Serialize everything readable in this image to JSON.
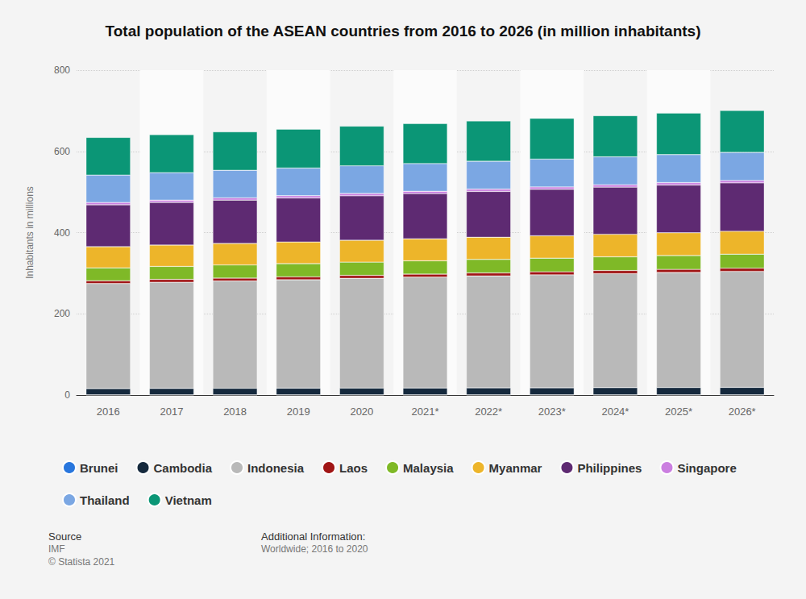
{
  "chart_data": {
    "type": "bar",
    "title": "Total population of the ASEAN countries from 2016 to 2026 (in million inhabitants)",
    "y_label": "Inhabitants in millions",
    "categories": [
      "2016",
      "2017",
      "2018",
      "2019",
      "2020",
      "2021*",
      "2022*",
      "2023*",
      "2024*",
      "2025*",
      "2026*"
    ],
    "series": [
      {
        "name": "Brunei",
        "color": "#2876dd",
        "values": [
          0.42,
          0.42,
          0.43,
          0.44,
          0.45,
          0.45,
          0.46,
          0.46,
          0.47,
          0.47,
          0.48
        ]
      },
      {
        "name": "Cambodia",
        "color": "#15293d",
        "values": [
          15.6,
          15.9,
          16.2,
          16.5,
          16.7,
          17.0,
          17.3,
          17.5,
          17.8,
          18.1,
          18.4
        ]
      },
      {
        "name": "Indonesia",
        "color": "#b9b9b9",
        "values": [
          258.5,
          261.4,
          264.2,
          266.9,
          270.2,
          272.8,
          275.4,
          278.0,
          280.6,
          283.1,
          285.6
        ]
      },
      {
        "name": "Laos",
        "color": "#a01515",
        "values": [
          6.9,
          7.0,
          7.1,
          7.2,
          7.3,
          7.4,
          7.5,
          7.6,
          7.7,
          7.8,
          7.9
        ]
      },
      {
        "name": "Malaysia",
        "color": "#7fb927",
        "values": [
          31.6,
          32.0,
          32.4,
          32.5,
          32.7,
          32.9,
          33.2,
          33.5,
          33.8,
          34.1,
          34.4
        ]
      },
      {
        "name": "Myanmar",
        "color": "#edb52a",
        "values": [
          52.3,
          52.6,
          53.0,
          53.3,
          53.7,
          54.2,
          54.6,
          55.1,
          55.5,
          56.0,
          56.4
        ]
      },
      {
        "name": "Philippines",
        "color": "#5e2a72",
        "values": [
          103.2,
          105.0,
          106.7,
          108.4,
          109.6,
          111.2,
          112.8,
          114.4,
          116.0,
          117.6,
          119.2
        ]
      },
      {
        "name": "Singapore",
        "color": "#cb7fe0",
        "values": [
          5.6,
          5.6,
          5.6,
          5.7,
          5.7,
          5.7,
          5.8,
          5.8,
          5.9,
          5.9,
          6.0
        ]
      },
      {
        "name": "Thailand",
        "color": "#7ba7e3",
        "values": [
          67.5,
          67.7,
          67.8,
          68.0,
          68.2,
          68.3,
          68.5,
          68.6,
          68.8,
          68.9,
          69.0
        ]
      },
      {
        "name": "Vietnam",
        "color": "#0b9676",
        "values": [
          92.7,
          93.7,
          94.7,
          95.7,
          97.6,
          98.5,
          99.4,
          100.3,
          101.3,
          102.2,
          103.1
        ]
      }
    ],
    "ylim": [
      0,
      800
    ],
    "yticks": [
      0,
      200,
      400,
      600,
      800
    ],
    "grid": true,
    "stacked": true,
    "legend": "bottom",
    "annotations": [
      [
        "Source",
        "IMF",
        "© Statista 2021"
      ],
      [
        "Additional Information:",
        "Worldwide; 2016 to 2020"
      ]
    ]
  }
}
